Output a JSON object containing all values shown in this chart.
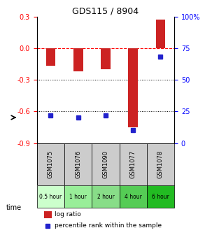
{
  "title": "GDS115 / 8904",
  "samples": [
    "GSM1075",
    "GSM1076",
    "GSM1090",
    "GSM1077",
    "GSM1078"
  ],
  "time_labels": [
    "0.5 hour",
    "1 hour",
    "2 hour",
    "4 hour",
    "6 hour"
  ],
  "time_colors": [
    "#ccffcc",
    "#99ee99",
    "#88dd88",
    "#55cc55",
    "#22bb22"
  ],
  "log_ratios": [
    -0.17,
    -0.22,
    -0.2,
    -0.75,
    0.27
  ],
  "percentile_ranks": [
    22,
    20,
    22,
    10,
    68
  ],
  "bar_color": "#cc2222",
  "dot_color": "#2222cc",
  "ylim_left": [
    -0.9,
    0.3
  ],
  "yticks_left": [
    -0.9,
    -0.6,
    -0.3,
    0.0,
    0.3
  ],
  "yticks_right": [
    0,
    25,
    50,
    75,
    100
  ],
  "ytick_labels_right": [
    "0",
    "25",
    "50",
    "75",
    "100%"
  ],
  "dotted_lines": [
    -0.3,
    -0.6
  ],
  "legend_log_ratio": "log ratio",
  "legend_percentile": "percentile rank within the sample",
  "time_row_label": "time"
}
